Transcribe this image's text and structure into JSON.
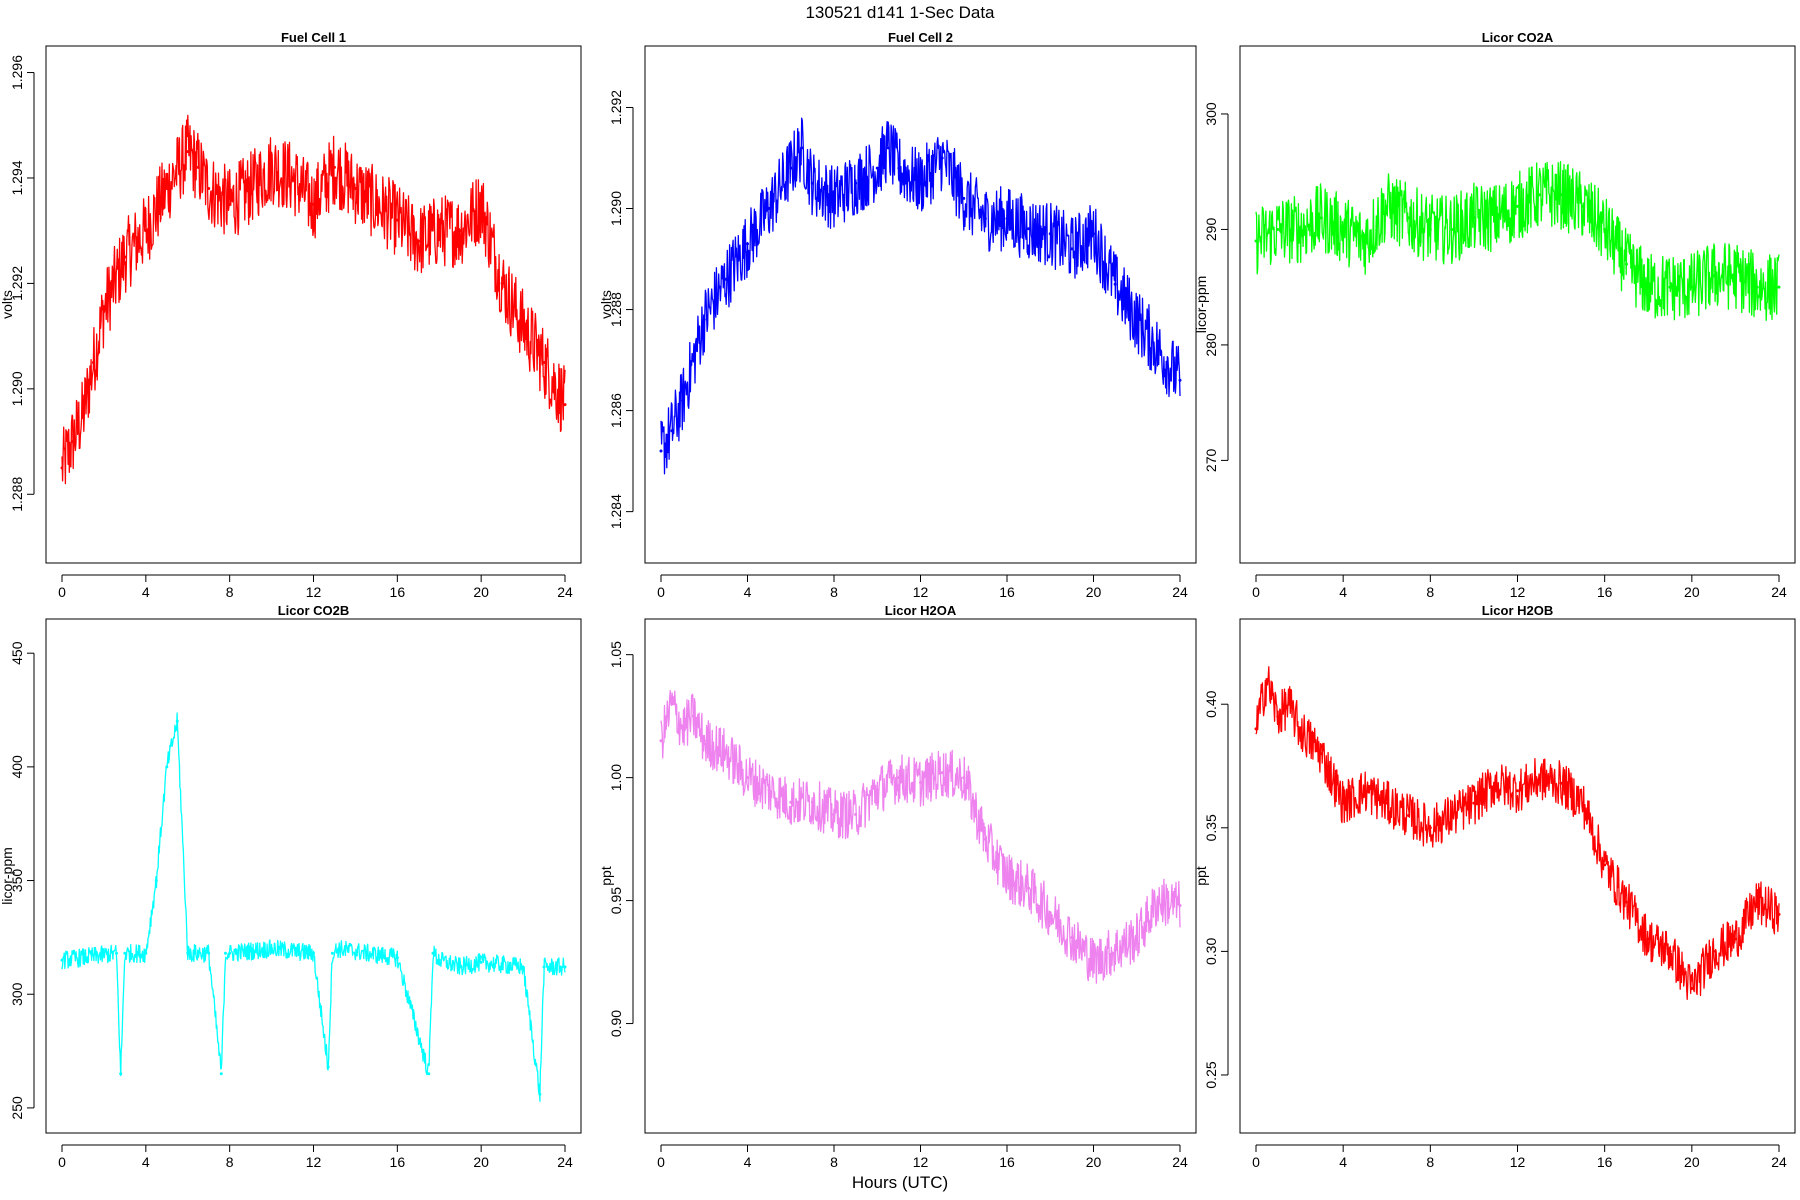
{
  "figure": {
    "title": "130521   d141   1-Sec Data",
    "xlabel": "Hours (UTC)"
  },
  "chart_data": [
    {
      "type": "line",
      "title": "Fuel Cell 1",
      "ylabel": "volts",
      "color": "#ff0000",
      "xlim": [
        0,
        24
      ],
      "ylim": [
        1.287,
        1.2962
      ],
      "xticks": [
        "0",
        "4",
        "8",
        "12",
        "16",
        "20",
        "24"
      ],
      "yticks": [
        "1.288",
        "1.290",
        "1.292",
        "1.294",
        "1.296"
      ],
      "x": [
        0,
        0.5,
        1,
        1.5,
        2,
        3,
        4,
        5,
        6,
        6.5,
        7,
        8,
        9,
        10,
        11,
        12,
        13,
        14,
        15,
        16,
        17,
        18,
        19,
        20,
        21,
        22,
        23,
        24
      ],
      "y": [
        1.2885,
        1.289,
        1.2895,
        1.2905,
        1.2915,
        1.2925,
        1.293,
        1.2938,
        1.2945,
        1.2942,
        1.2938,
        1.2935,
        1.2938,
        1.2942,
        1.294,
        1.2935,
        1.2942,
        1.2938,
        1.2935,
        1.2932,
        1.2928,
        1.293,
        1.293,
        1.2935,
        1.292,
        1.2912,
        1.2905,
        1.2897
      ],
      "noise": 0.0014
    },
    {
      "type": "line",
      "title": "Fuel Cell 2",
      "ylabel": "volts",
      "color": "#0000ff",
      "xlim": [
        0,
        24
      ],
      "ylim": [
        1.2833,
        1.2929
      ],
      "xticks": [
        "0",
        "4",
        "8",
        "12",
        "16",
        "20",
        "24"
      ],
      "yticks": [
        "1.284",
        "1.286",
        "1.288",
        "1.290",
        "1.292"
      ],
      "x": [
        0,
        0.5,
        1,
        1.5,
        2,
        3,
        4,
        5,
        6,
        6.5,
        7,
        8,
        9,
        10,
        10.5,
        11,
        12,
        13,
        14,
        15,
        16,
        17,
        18,
        19,
        20,
        21,
        22,
        23,
        24
      ],
      "y": [
        1.2852,
        1.2856,
        1.2862,
        1.287,
        1.2878,
        1.2886,
        1.2893,
        1.29,
        1.2908,
        1.2912,
        1.2905,
        1.2902,
        1.2905,
        1.2908,
        1.2912,
        1.2908,
        1.2905,
        1.291,
        1.2902,
        1.2898,
        1.2898,
        1.2896,
        1.2895,
        1.2892,
        1.2895,
        1.2885,
        1.2878,
        1.2872,
        1.2866
      ],
      "noise": 0.0013
    },
    {
      "type": "line",
      "title": "Licor CO2A",
      "ylabel": "licor-ppm",
      "color": "#00ff00",
      "xlim": [
        0,
        24
      ],
      "ylim": [
        262.5,
        304.5
      ],
      "xticks": [
        "0",
        "4",
        "8",
        "12",
        "16",
        "20",
        "24"
      ],
      "yticks": [
        "270",
        "280",
        "290",
        "300"
      ],
      "x": [
        0,
        1,
        2,
        3,
        4,
        5,
        6,
        7,
        8,
        9,
        10,
        11,
        12,
        13,
        14,
        15,
        16,
        17,
        18,
        19,
        20,
        21,
        22,
        23,
        24
      ],
      "y": [
        289,
        290,
        290,
        291,
        290,
        289,
        292,
        291,
        290,
        290,
        291,
        291,
        292,
        293,
        293,
        292,
        290,
        287,
        285,
        285,
        285,
        286,
        286,
        285,
        285
      ],
      "noise": 6
    },
    {
      "type": "line",
      "title": "Licor CO2B",
      "ylabel": "licor-ppm",
      "color": "#00ffff",
      "xlim": [
        0,
        24
      ],
      "ylim": [
        246,
        458
      ],
      "xticks": [
        "0",
        "4",
        "8",
        "12",
        "16",
        "20",
        "24"
      ],
      "yticks": [
        "250",
        "300",
        "350",
        "400",
        "450"
      ],
      "x": [
        0,
        2.6,
        2.8,
        3,
        4,
        4.5,
        5,
        5.5,
        6,
        7,
        7.6,
        7.8,
        8,
        10,
        12,
        12.7,
        12.9,
        13.2,
        16,
        17.5,
        17.7,
        18,
        19,
        20,
        22,
        22.8,
        23,
        24
      ],
      "y": [
        315,
        318,
        265,
        318,
        318,
        350,
        400,
        420,
        318,
        318,
        265,
        318,
        318,
        320,
        318,
        268,
        318,
        320,
        316,
        265,
        318,
        315,
        312,
        314,
        312,
        256,
        312,
        312
      ],
      "noise": 8
    },
    {
      "type": "line",
      "title": "Licor H2OA",
      "ylabel": "ppt",
      "color": "#ee82ee",
      "xlim": [
        0,
        24
      ],
      "ylim": [
        0.862,
        1.058
      ],
      "xticks": [
        "0",
        "4",
        "8",
        "12",
        "16",
        "20",
        "24"
      ],
      "yticks": [
        "0.90",
        "0.95",
        "1.00",
        "1.05"
      ],
      "x": [
        0,
        0.5,
        1,
        1.5,
        2,
        3,
        4,
        5,
        6,
        7,
        8,
        9,
        10,
        11,
        12,
        13,
        14,
        15,
        16,
        17,
        18,
        19,
        20,
        21,
        22,
        23,
        24
      ],
      "y": [
        1.015,
        1.03,
        1.02,
        1.025,
        1.015,
        1.01,
        1.0,
        0.995,
        0.99,
        0.99,
        0.985,
        0.985,
        0.995,
        1.0,
        0.998,
        1.002,
        1.0,
        0.975,
        0.96,
        0.955,
        0.945,
        0.935,
        0.925,
        0.93,
        0.935,
        0.95,
        0.948
      ],
      "noise": 0.02
    },
    {
      "type": "line",
      "title": "Licor H2OB",
      "ylabel": "ppt",
      "color": "#ff0000",
      "xlim": [
        0,
        24
      ],
      "ylim": [
        0.233,
        0.428
      ],
      "xticks": [
        "0",
        "4",
        "8",
        "12",
        "16",
        "20",
        "24"
      ],
      "yticks": [
        "0.25",
        "0.30",
        "0.35",
        "0.40"
      ],
      "x": [
        0,
        0.5,
        1,
        1.5,
        2,
        3,
        4,
        5,
        6,
        7,
        8,
        9,
        10,
        11,
        12,
        13,
        14,
        15,
        16,
        17,
        18,
        19,
        20,
        21,
        22,
        23,
        24
      ],
      "y": [
        0.39,
        0.41,
        0.395,
        0.4,
        0.39,
        0.38,
        0.36,
        0.365,
        0.36,
        0.355,
        0.35,
        0.355,
        0.36,
        0.368,
        0.365,
        0.37,
        0.368,
        0.36,
        0.335,
        0.32,
        0.305,
        0.3,
        0.285,
        0.3,
        0.305,
        0.32,
        0.315
      ],
      "noise": 0.018
    }
  ]
}
